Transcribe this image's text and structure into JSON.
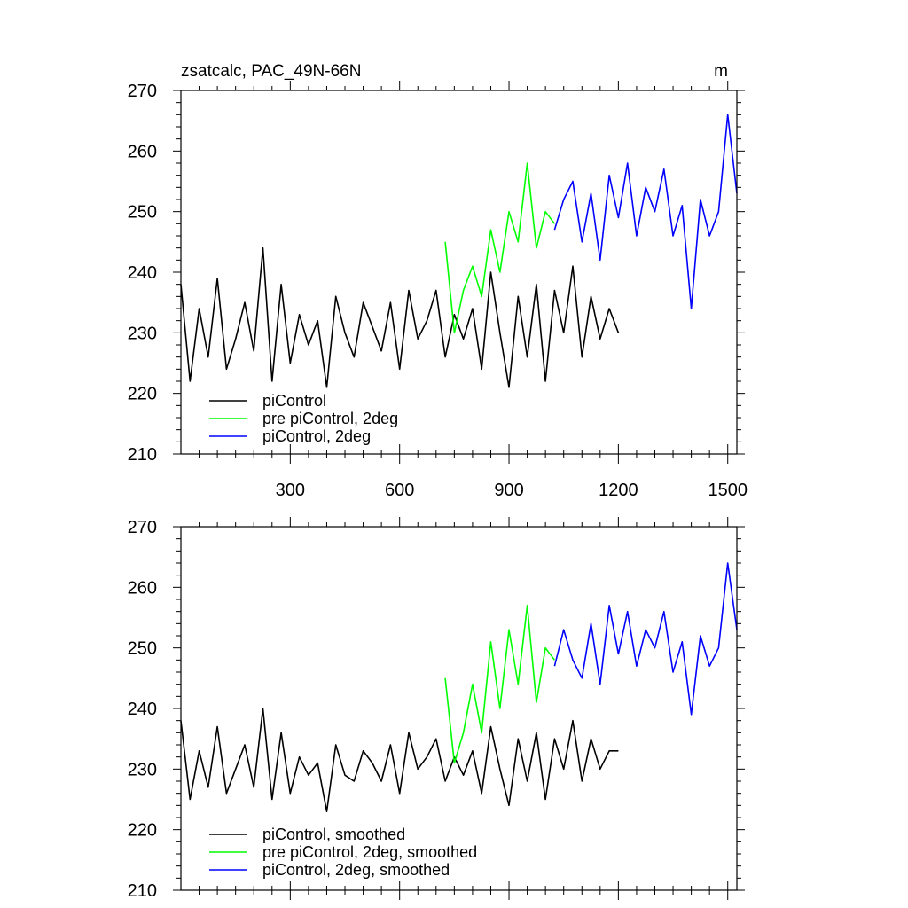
{
  "chart_data": [
    {
      "type": "line",
      "title": "zsatcalc, PAC_49N-66N",
      "units": "m",
      "xlim": [
        0,
        1525
      ],
      "ylim": [
        210,
        270
      ],
      "xticks": [
        300,
        600,
        900,
        1200,
        1500
      ],
      "yticks": [
        210,
        220,
        230,
        240,
        250,
        260,
        270
      ],
      "series": [
        {
          "name": "piControl",
          "color": "#000000",
          "x": [
            0,
            25,
            50,
            75,
            100,
            125,
            150,
            175,
            200,
            225,
            250,
            275,
            300,
            325,
            350,
            375,
            400,
            425,
            450,
            475,
            500,
            525,
            550,
            575,
            600,
            625,
            650,
            675,
            700,
            725,
            750,
            775,
            800,
            825,
            850,
            875,
            900,
            925,
            950,
            975,
            1000,
            1025,
            1050,
            1075,
            1100,
            1125,
            1150,
            1175,
            1200
          ],
          "y": [
            238,
            222,
            234,
            226,
            239,
            224,
            229,
            235,
            227,
            244,
            222,
            238,
            225,
            233,
            228,
            232,
            221,
            236,
            230,
            226,
            235,
            231,
            227,
            235,
            224,
            237,
            229,
            232,
            237,
            226,
            233,
            229,
            234,
            224,
            240,
            230,
            221,
            236,
            226,
            238,
            222,
            237,
            230,
            241,
            226,
            236,
            229,
            234,
            230
          ]
        },
        {
          "name": "pre piControl, 2deg",
          "color": "#00ff00",
          "x": [
            725,
            750,
            775,
            800,
            825,
            850,
            875,
            900,
            925,
            950,
            975,
            1000,
            1025
          ],
          "y": [
            245,
            230,
            237,
            241,
            236,
            247,
            240,
            250,
            245,
            258,
            244,
            250,
            248
          ]
        },
        {
          "name": "piControl, 2deg",
          "color": "#0000ff",
          "x": [
            1025,
            1050,
            1075,
            1100,
            1125,
            1150,
            1175,
            1200,
            1225,
            1250,
            1275,
            1300,
            1325,
            1350,
            1375,
            1400,
            1425,
            1450,
            1475,
            1500,
            1525
          ],
          "y": [
            247,
            252,
            255,
            245,
            253,
            242,
            256,
            249,
            258,
            246,
            254,
            250,
            257,
            246,
            251,
            234,
            252,
            246,
            250,
            266,
            253
          ]
        }
      ]
    },
    {
      "type": "line",
      "title": "",
      "xlim": [
        0,
        1525
      ],
      "ylim": [
        210,
        270
      ],
      "xticks": [
        300,
        600,
        900,
        1200,
        1500
      ],
      "yticks": [
        210,
        220,
        230,
        240,
        250,
        260,
        270
      ],
      "series": [
        {
          "name": "piControl, smoothed",
          "color": "#000000",
          "x": [
            0,
            25,
            50,
            75,
            100,
            125,
            150,
            175,
            200,
            225,
            250,
            275,
            300,
            325,
            350,
            375,
            400,
            425,
            450,
            475,
            500,
            525,
            550,
            575,
            600,
            625,
            650,
            675,
            700,
            725,
            750,
            775,
            800,
            825,
            850,
            875,
            900,
            925,
            950,
            975,
            1000,
            1025,
            1050,
            1075,
            1100,
            1125,
            1150,
            1175,
            1200
          ],
          "y": [
            238,
            225,
            233,
            227,
            237,
            226,
            230,
            234,
            227,
            240,
            225,
            236,
            226,
            232,
            229,
            231,
            223,
            234,
            229,
            228,
            233,
            231,
            228,
            234,
            226,
            236,
            230,
            232,
            235,
            228,
            232,
            229,
            233,
            226,
            237,
            230,
            224,
            235,
            228,
            236,
            225,
            235,
            230,
            238,
            228,
            235,
            230,
            233,
            233
          ]
        },
        {
          "name": "pre piControl, 2deg, smoothed",
          "color": "#00ff00",
          "x": [
            725,
            750,
            775,
            800,
            825,
            850,
            875,
            900,
            925,
            950,
            975,
            1000,
            1025
          ],
          "y": [
            245,
            231,
            236,
            244,
            236,
            251,
            240,
            253,
            244,
            257,
            241,
            250,
            248
          ]
        },
        {
          "name": "piControl, 2deg, smoothed",
          "color": "#0000ff",
          "x": [
            1025,
            1050,
            1075,
            1100,
            1125,
            1150,
            1175,
            1200,
            1225,
            1250,
            1275,
            1300,
            1325,
            1350,
            1375,
            1400,
            1425,
            1450,
            1475,
            1500,
            1525
          ],
          "y": [
            247,
            253,
            248,
            245,
            254,
            244,
            257,
            249,
            256,
            247,
            253,
            250,
            256,
            246,
            251,
            239,
            252,
            247,
            250,
            264,
            253
          ]
        }
      ]
    }
  ]
}
